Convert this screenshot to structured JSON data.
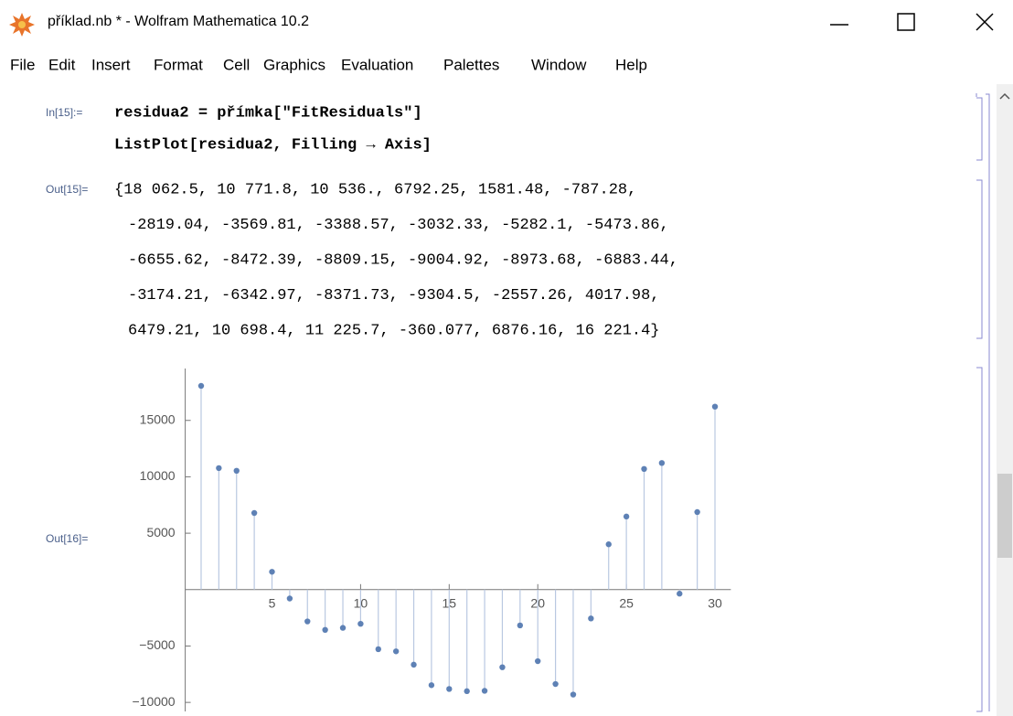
{
  "window": {
    "title": "příklad.nb * - Wolfram Mathematica 10.2"
  },
  "menu": [
    "File",
    "Edit",
    "Insert",
    "Format",
    "Cell",
    "Graphics",
    "Evaluation",
    "Palettes",
    "Window",
    "Help"
  ],
  "cells": [
    {
      "label": "In[15]:=",
      "lines": [
        "residua2 = přímka[\"FitResiduals\"]",
        "ListPlot[residua2, Filling → Axis]"
      ]
    },
    {
      "label": "Out[15]=",
      "lines": [
        "{18 062.5, 10 771.8, 10 536., 6792.25, 1581.48, -787.28,",
        "-2819.04, -3569.81, -3388.57, -3032.33, -5282.1, -5473.86,",
        "-6655.62, -8472.39, -8809.15, -9004.92, -8973.68, -6883.44,",
        "-3174.21, -6342.97, -8371.73, -9304.5, -2557.26, 4017.98,",
        "6479.21, 10 698.4, 11 225.7, -360.077, 6876.16, 16 221.4}"
      ]
    },
    {
      "label": "Out[16]="
    }
  ],
  "chart_data": {
    "type": "scatter",
    "x": [
      1,
      2,
      3,
      4,
      5,
      6,
      7,
      8,
      9,
      10,
      11,
      12,
      13,
      14,
      15,
      16,
      17,
      18,
      19,
      20,
      21,
      22,
      23,
      24,
      25,
      26,
      27,
      28,
      29,
      30
    ],
    "values": [
      18062.5,
      10771.8,
      10536,
      6792.25,
      1581.48,
      -787.28,
      -2819.04,
      -3569.81,
      -3388.57,
      -3032.33,
      -5282.1,
      -5473.86,
      -6655.62,
      -8472.39,
      -8809.15,
      -9004.92,
      -8973.68,
      -6883.44,
      -3174.21,
      -6342.97,
      -8371.73,
      -9304.5,
      -2557.26,
      4017.98,
      6479.21,
      10698.4,
      11225.7,
      -360.077,
      6876.16,
      16221.4
    ],
    "color": "#5e81b5",
    "filling_color": "#b9c8e1",
    "xlim": [
      0,
      31
    ],
    "ylim": [
      -10800,
      19600
    ],
    "xticks": [
      5,
      10,
      15,
      20,
      25,
      30
    ],
    "yticks": [
      {
        "value": -10000,
        "label": "−10000"
      },
      {
        "value": -5000,
        "label": "−5000"
      },
      5000,
      10000,
      15000
    ]
  }
}
